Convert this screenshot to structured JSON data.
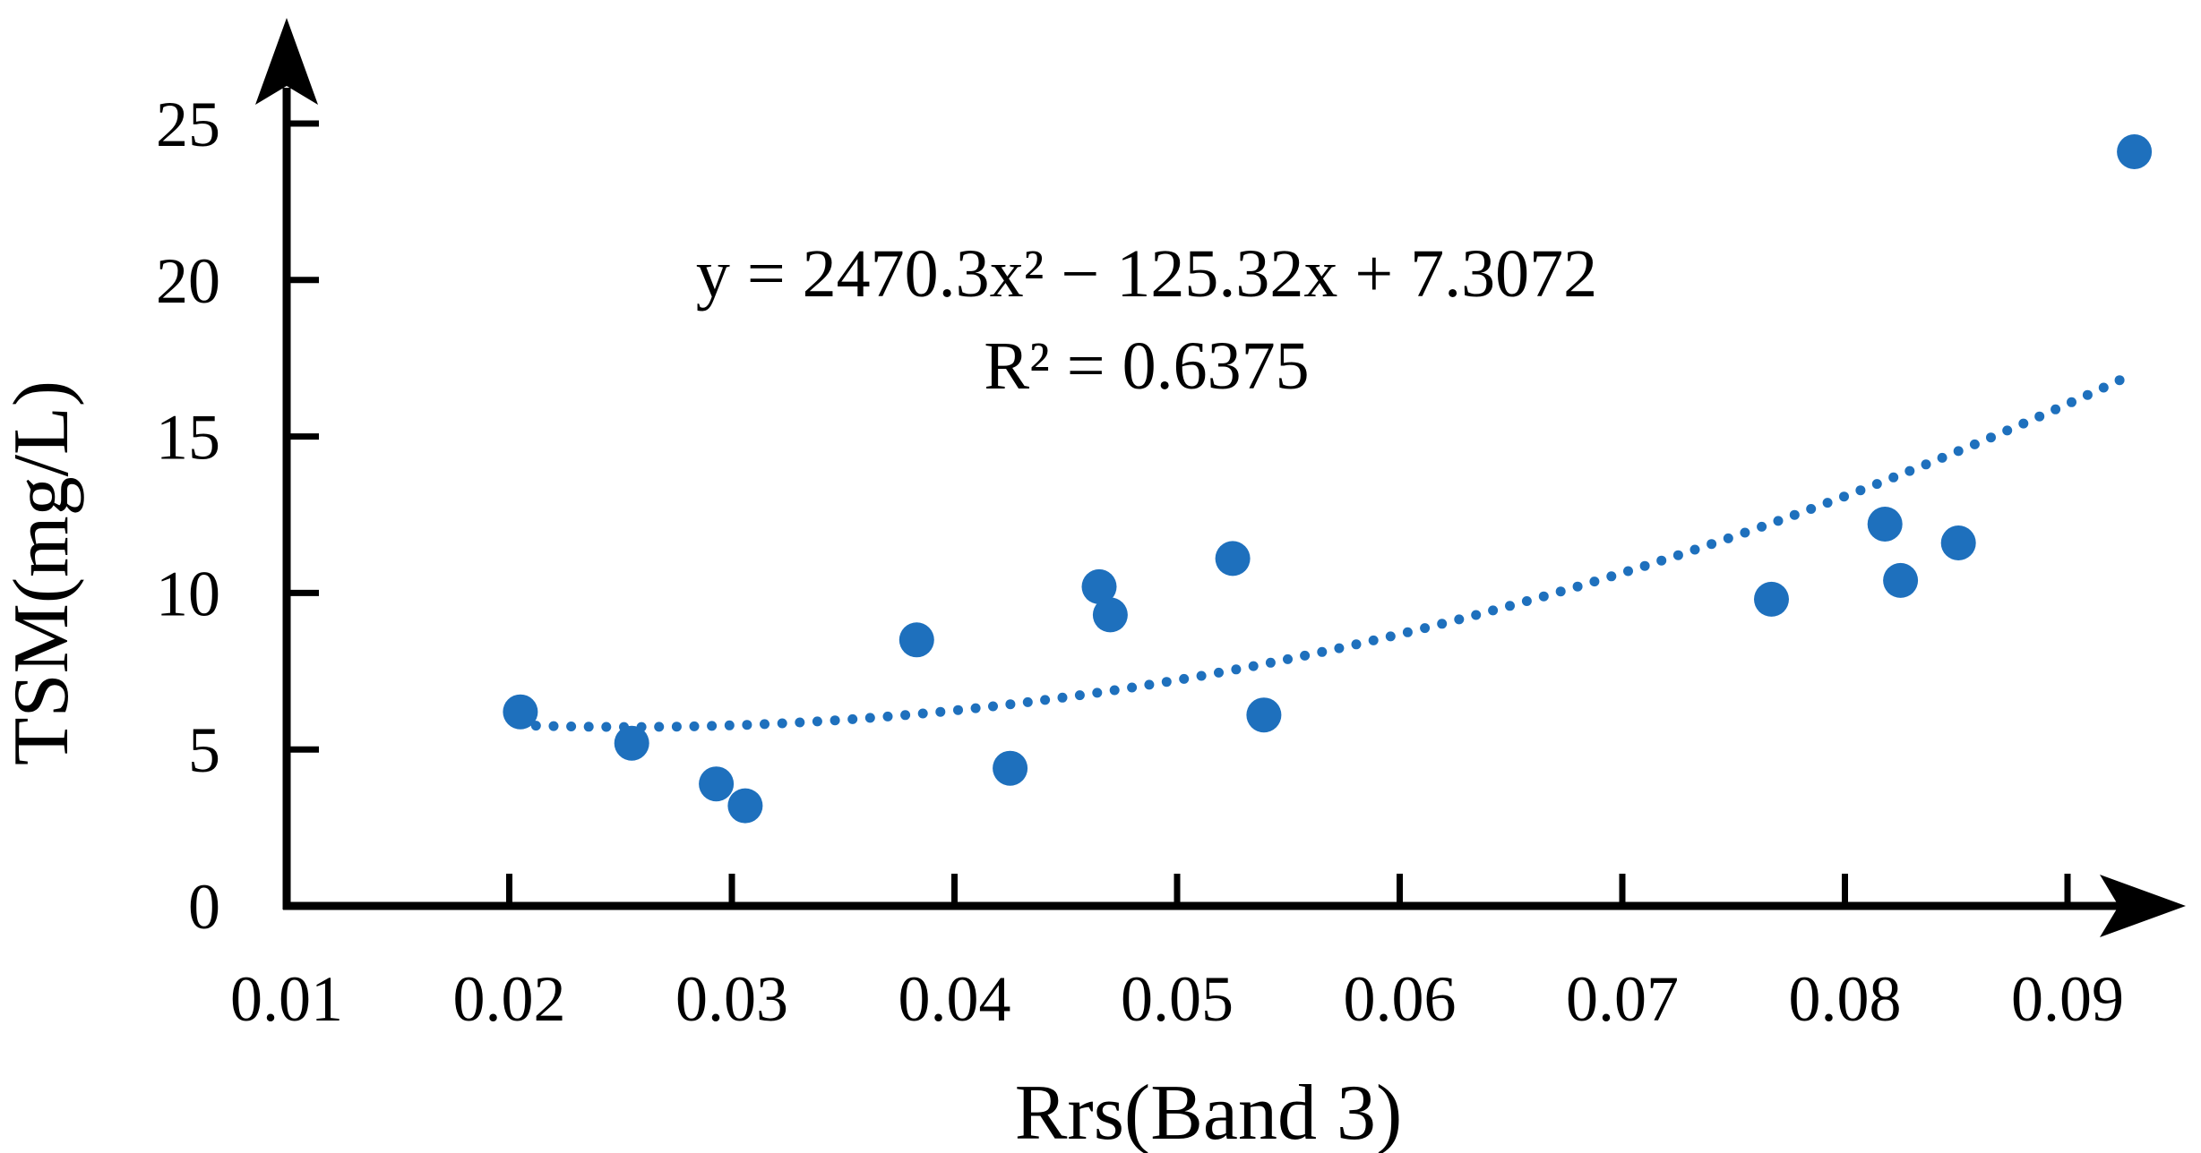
{
  "figure": {
    "background": "#ffffff"
  },
  "chart_data": {
    "type": "scatter",
    "title": "",
    "xlabel": "Rrs(Band 3)",
    "ylabel": "TSM(mg/L)",
    "xlim": [
      0.01,
      0.095
    ],
    "ylim": [
      0,
      28
    ],
    "grid": false,
    "legend_position": "none",
    "x_ticks": {
      "values": [
        0.01,
        0.02,
        0.03,
        0.04,
        0.05,
        0.06,
        0.07,
        0.08,
        0.09
      ],
      "labels": [
        "0.01",
        "0.02",
        "0.03",
        "0.04",
        "0.05",
        "0.06",
        "0.07",
        "0.08",
        "0.09"
      ]
    },
    "y_ticks": {
      "values": [
        0,
        5,
        10,
        15,
        20,
        25
      ],
      "labels": [
        "0",
        "5",
        "10",
        "15",
        "20",
        "25"
      ]
    },
    "points": [
      {
        "x": 0.0205,
        "y": 6.2
      },
      {
        "x": 0.0255,
        "y": 5.2
      },
      {
        "x": 0.0293,
        "y": 3.9
      },
      {
        "x": 0.0306,
        "y": 3.2
      },
      {
        "x": 0.0383,
        "y": 8.5
      },
      {
        "x": 0.0425,
        "y": 4.4
      },
      {
        "x": 0.0465,
        "y": 10.2
      },
      {
        "x": 0.047,
        "y": 9.3
      },
      {
        "x": 0.0525,
        "y": 11.1
      },
      {
        "x": 0.0539,
        "y": 6.1
      },
      {
        "x": 0.0767,
        "y": 9.8
      },
      {
        "x": 0.0818,
        "y": 12.2
      },
      {
        "x": 0.0825,
        "y": 10.4
      },
      {
        "x": 0.0851,
        "y": 11.6
      },
      {
        "x": 0.093,
        "y": 24.1
      }
    ],
    "trendline": {
      "type": "quadratic",
      "a": 2470.3,
      "b": -125.32,
      "c": 7.3072,
      "x_start": 0.0212,
      "x_end": 0.0926,
      "style": "dotted"
    },
    "annotations": {
      "equation": "y = 2470.3x² − 125.32x + 7.3072",
      "r_squared": "R² = 0.6375"
    },
    "style": {
      "point_radius": 19.5,
      "trend_dot_radius": 5.5,
      "trend_dot_spacing": 19.5
    },
    "colors": {
      "points": "#1e70bd",
      "trendline": "#1e70bd",
      "axis": "#000000",
      "text": "#000000"
    }
  }
}
